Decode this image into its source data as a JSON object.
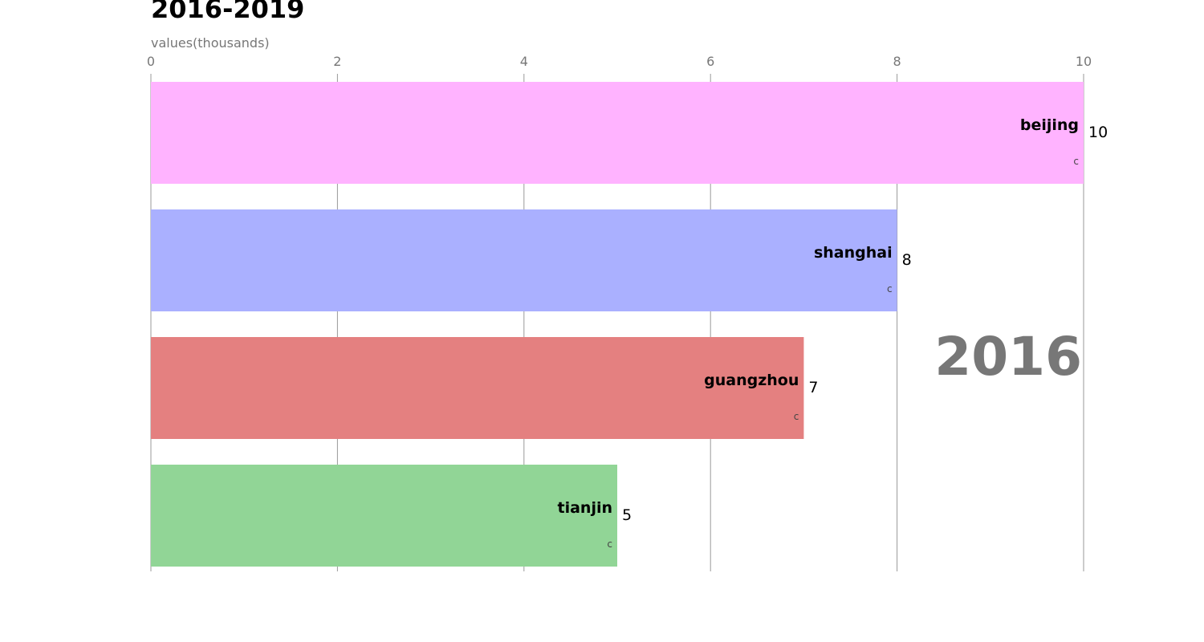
{
  "chart_data": {
    "type": "bar",
    "orientation": "horizontal",
    "title": "2016-2019",
    "xlabel": "values(thousands)",
    "ylabel": "",
    "xlim": [
      0,
      10
    ],
    "xticks": [
      "0",
      "2",
      "4",
      "6",
      "8",
      "10"
    ],
    "categories": [
      "beijing",
      "shanghai",
      "guangzhou",
      "tianjin"
    ],
    "values": [
      10,
      8,
      7,
      5
    ],
    "value_labels": [
      "10",
      "8",
      "7",
      "5"
    ],
    "bar_tags": [
      "c",
      "c",
      "c",
      "c"
    ],
    "colors": [
      "#ffb3ff",
      "#aab0ff",
      "#e48080",
      "#91d596"
    ],
    "period_label": "2016",
    "grid": true,
    "legend": "none"
  }
}
